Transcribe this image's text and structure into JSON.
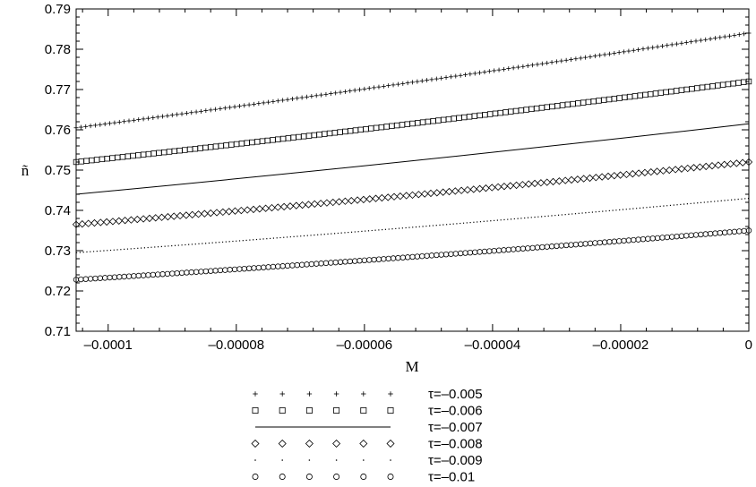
{
  "chart_data": {
    "type": "line",
    "xlabel": "M",
    "ylabel": "ñ",
    "xlim": [
      -0.000105,
      0
    ],
    "ylim": [
      0.71,
      0.79
    ],
    "x_ticks": [
      -0.0001,
      -8e-05,
      -6e-05,
      -4e-05,
      -2e-05,
      0
    ],
    "x_tick_labels": [
      "–0.0001",
      "–0.00008",
      "–0.00006",
      "–0.00004",
      "–0.00002",
      "0"
    ],
    "y_ticks": [
      0.71,
      0.72,
      0.73,
      0.74,
      0.75,
      0.76,
      0.77,
      0.78,
      0.79
    ],
    "y_tick_labels": [
      "0.71",
      "0.72",
      "0.73",
      "0.74",
      "0.75",
      "0.76",
      "0.77",
      "0.78",
      "0.79"
    ],
    "grid": false,
    "legend_position": "bottom",
    "series": [
      {
        "name": "τ=–0.005",
        "marker": "plus",
        "x": [
          -0.000105,
          0
        ],
        "y": [
          0.7605,
          0.784
        ]
      },
      {
        "name": "τ=–0.006",
        "marker": "square",
        "x": [
          -0.000105,
          0
        ],
        "y": [
          0.752,
          0.772
        ]
      },
      {
        "name": "τ=–0.007",
        "marker": "line",
        "x": [
          -0.000105,
          0
        ],
        "y": [
          0.744,
          0.7615
        ]
      },
      {
        "name": "τ=–0.008",
        "marker": "diamond",
        "x": [
          -0.000105,
          0
        ],
        "y": [
          0.7365,
          0.752
        ]
      },
      {
        "name": "τ=–0.009",
        "marker": "dot",
        "x": [
          -0.000105,
          0
        ],
        "y": [
          0.7295,
          0.743
        ]
      },
      {
        "name": "τ=–0.01",
        "marker": "circle",
        "x": [
          -0.000105,
          0
        ],
        "y": [
          0.7228,
          0.735
        ]
      }
    ]
  }
}
